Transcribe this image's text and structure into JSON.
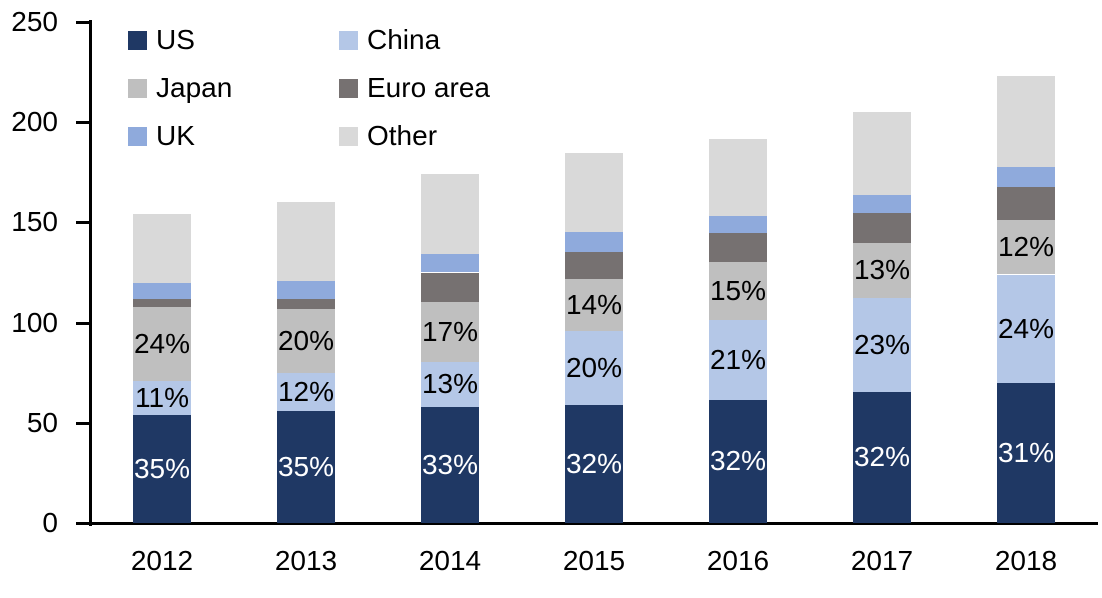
{
  "chart_data": {
    "type": "bar",
    "stacked": true,
    "title": "",
    "xlabel": "",
    "ylabel": "",
    "categories": [
      "2012",
      "2013",
      "2014",
      "2015",
      "2016",
      "2017",
      "2018"
    ],
    "series": [
      {
        "name": "US",
        "color": "#1F3864",
        "values": [
          54,
          56,
          58,
          59,
          61.5,
          65.5,
          70
        ],
        "labels": [
          "35%",
          "35%",
          "33%",
          "32%",
          "32%",
          "32%",
          "31%"
        ],
        "label_color": "#FFFFFF"
      },
      {
        "name": "China",
        "color": "#B4C7E7",
        "values": [
          17,
          19,
          22.5,
          37,
          40,
          47,
          54
        ],
        "labels": [
          "11%",
          "12%",
          "13%",
          "20%",
          "21%",
          "23%",
          "24%"
        ],
        "label_color": "#000000"
      },
      {
        "name": "Japan",
        "color": "#BFBFBF",
        "values": [
          37,
          32,
          30,
          26,
          28.5,
          27,
          27
        ],
        "labels": [
          "24%",
          "20%",
          "17%",
          "14%",
          "15%",
          "13%",
          "12%"
        ],
        "label_color": "#000000"
      },
      {
        "name": "Euro area",
        "color": "#767171",
        "values": [
          4,
          5,
          14.5,
          13,
          14.5,
          15,
          16.5
        ],
        "labels": null,
        "label_color": "#000000"
      },
      {
        "name": "UK",
        "color": "#8FAADC",
        "values": [
          8,
          9,
          9,
          10,
          8.5,
          9,
          10
        ],
        "labels": null,
        "label_color": "#000000"
      },
      {
        "name": "Other",
        "color": "#D9D9D9",
        "values": [
          34,
          39,
          40,
          39.5,
          38.5,
          41.5,
          45.5
        ],
        "labels": null,
        "label_color": "#000000"
      }
    ],
    "totals": [
      154,
      160,
      174,
      184.5,
      191.5,
      205,
      223
    ],
    "ylim": [
      0,
      250
    ],
    "yticks": [
      0,
      50,
      100,
      150,
      200,
      250
    ],
    "grid": false,
    "legend_position": "top-left",
    "legend_columns": 2,
    "legend_order": [
      "US",
      "China",
      "Japan",
      "Euro area",
      "UK",
      "Other"
    ],
    "axis_color": "#000000",
    "background": "#FFFFFF"
  }
}
